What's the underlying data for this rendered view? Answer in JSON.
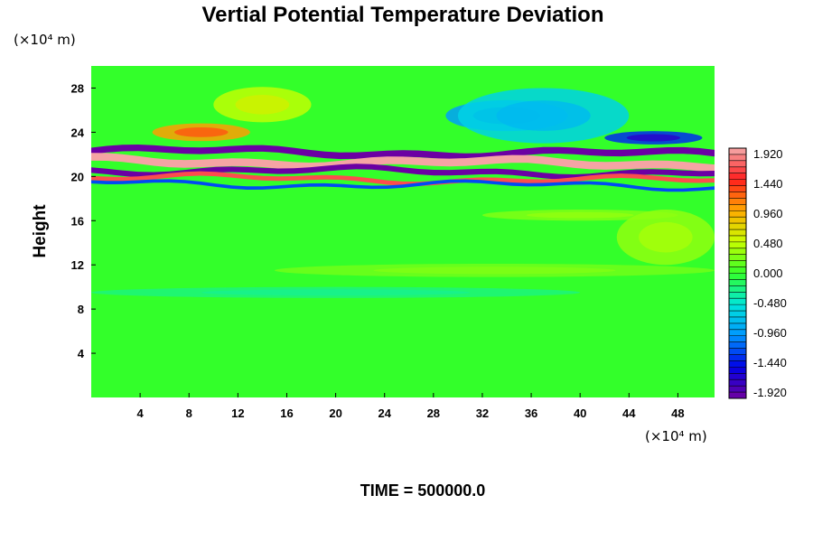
{
  "chart_data": {
    "type": "heatmap",
    "title": "Vertial Potential Temperature Deviation",
    "ylabel": "Height",
    "xlabel": "",
    "x_unit": "(×10⁴ m)",
    "y_unit": "(×10⁴ m)",
    "xlim": [
      0,
      51
    ],
    "ylim": [
      0,
      30
    ],
    "x_ticks": [
      4,
      8,
      12,
      16,
      20,
      24,
      28,
      32,
      36,
      40,
      44,
      48
    ],
    "y_ticks": [
      4,
      8,
      12,
      16,
      20,
      24,
      28
    ],
    "colorbar": {
      "labels": [
        "1.920",
        "1.440",
        "0.960",
        "0.480",
        "0.000",
        "-0.480",
        "-0.960",
        "-1.440",
        "-1.920"
      ],
      "min": -1.92,
      "max": 1.92
    },
    "features": [
      {
        "x": 9,
        "y": 24,
        "rx": 4,
        "ry": 0.8,
        "value": 1.0
      },
      {
        "x": 14,
        "y": 26.5,
        "rx": 4,
        "ry": 1.6,
        "value": 0.45
      },
      {
        "x": 34,
        "y": 25.5,
        "rx": 5,
        "ry": 1.4,
        "value": -0.9
      },
      {
        "x": 37,
        "y": 25.5,
        "rx": 7,
        "ry": 2.5,
        "value": -0.6
      },
      {
        "x": 46,
        "y": 23.5,
        "rx": 4,
        "ry": 0.6,
        "value": -1.3
      },
      {
        "x": 40,
        "y": 16.5,
        "rx": 8,
        "ry": 0.5,
        "value": 0.25
      },
      {
        "x": 47,
        "y": 14.5,
        "rx": 4,
        "ry": 2.5,
        "value": 0.3
      },
      {
        "x": 33,
        "y": 11.5,
        "rx": 18,
        "ry": 0.6,
        "value": 0.2
      },
      {
        "x": 20,
        "y": 9.5,
        "rx": 20,
        "ry": 0.5,
        "value": -0.22
      }
    ],
    "bands": [
      {
        "y": 22.3,
        "thickness": 0.6,
        "value": -1.9
      },
      {
        "y": 21.4,
        "thickness": 0.7,
        "value": 1.9
      },
      {
        "y": 20.6,
        "thickness": 0.5,
        "value": -1.9
      },
      {
        "y": 19.9,
        "thickness": 0.4,
        "value": 1.6
      },
      {
        "y": 19.4,
        "thickness": 0.3,
        "value": -1.2
      }
    ]
  },
  "footer": {
    "time_label": "TIME = 500000.0"
  },
  "colors": {
    "background_field": "#33ff2a",
    "axes": "#000000",
    "plot_bg": "#ffffff"
  }
}
